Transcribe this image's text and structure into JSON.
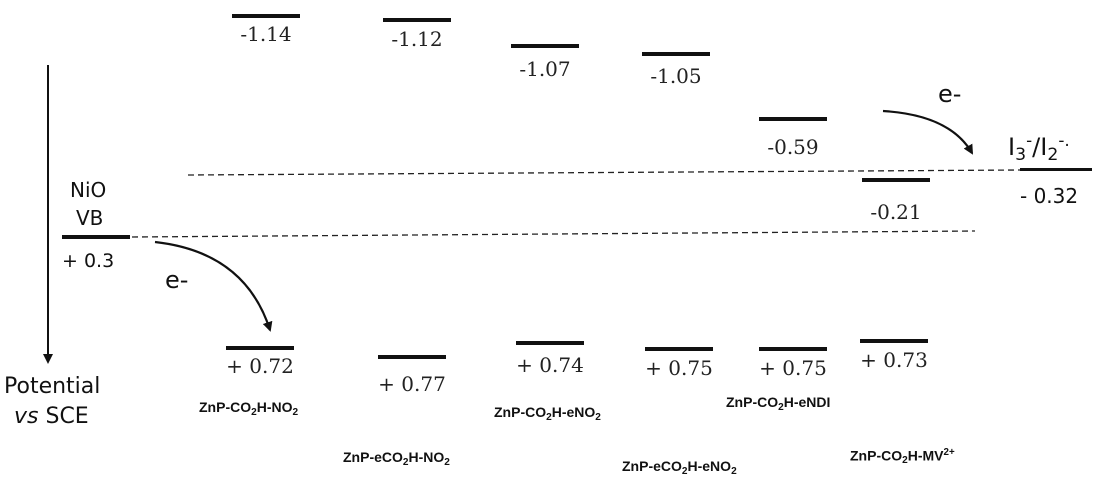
{
  "potential_axis": {
    "line1": "Potential",
    "line2_italic": "vs",
    "line2_rest": " SCE"
  },
  "nio": {
    "line1": "NiO",
    "line2": "VB",
    "value": "+ 0.3"
  },
  "redox": {
    "label": {
      "base1": "I",
      "sub1": "3",
      "sup1": "-",
      "slash": "/",
      "base2": "I",
      "sub2": "2",
      "sup2": "-."
    },
    "value": "- 0.32"
  },
  "electron_labels": [
    "e-",
    "e-"
  ],
  "upper_levels": [
    "-1.14",
    "-1.12",
    "-1.07",
    "-1.05",
    "-0.59",
    "-0.21"
  ],
  "lower_levels": [
    "+ 0.72",
    "+ 0.77",
    "+ 0.74",
    "+ 0.75",
    "+ 0.75",
    "+ 0.73"
  ],
  "compounds": [
    {
      "a": "ZnP-CO",
      "s": "2",
      "b": "H-NO",
      "s2": "2",
      "c": ""
    },
    {
      "a": "ZnP-eCO",
      "s": "2",
      "b": "H-NO",
      "s2": "2",
      "c": ""
    },
    {
      "a": "ZnP-CO",
      "s": "2",
      "b": "H-eNO",
      "s2": "2",
      "c": ""
    },
    {
      "a": "ZnP-eCO",
      "s": "2",
      "b": "H-eNO",
      "s2": "2",
      "c": ""
    },
    {
      "a": "ZnP-CO",
      "s": "2",
      "b": "H-eNDI",
      "s2": "",
      "c": ""
    },
    {
      "a": "ZnP-CO",
      "s": "2",
      "b": "H-MV",
      "s2": "",
      "c": "2+"
    }
  ],
  "colors": {
    "ink": "#111111",
    "dashed": "#222222"
  }
}
